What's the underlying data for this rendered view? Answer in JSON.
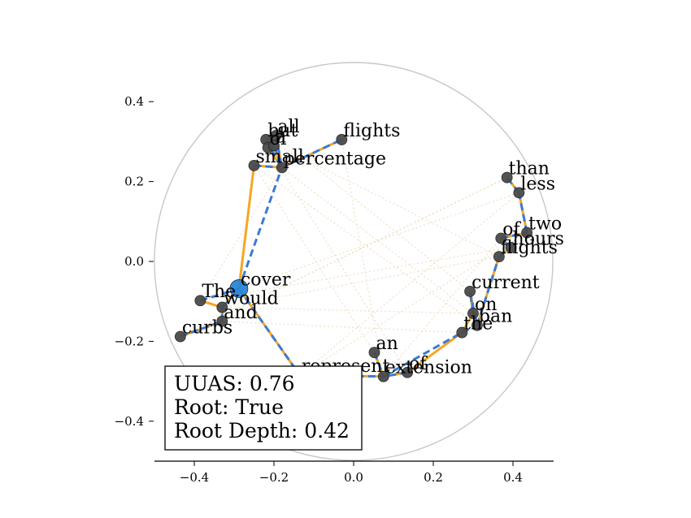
{
  "chart_data": {
    "type": "scatter",
    "title": "",
    "xlabel": "",
    "ylabel": "",
    "xlim": [
      -0.5,
      0.5
    ],
    "ylim": [
      -0.5,
      0.5
    ],
    "xticks": [
      -0.4,
      -0.2,
      0.0,
      0.2,
      0.4
    ],
    "yticks": [
      0.4,
      0.2,
      0.0,
      -0.2,
      -0.4
    ],
    "xtick_labels": [
      "−0.4",
      "−0.2",
      "0.0",
      "0.2",
      "0.4"
    ],
    "ytick_labels": [
      "0.4",
      "0.2",
      "0.0",
      "−0.2",
      "−0.4"
    ],
    "circle_radius": 0.5,
    "root": "cover",
    "points": [
      {
        "word": "The",
        "x": -0.385,
        "y": -0.098
      },
      {
        "word": "curbs",
        "x": -0.435,
        "y": -0.188
      },
      {
        "word": "would",
        "x": -0.33,
        "y": -0.115
      },
      {
        "word": "and",
        "x": -0.33,
        "y": -0.15
      },
      {
        "word": "cover",
        "x": -0.288,
        "y": -0.068
      },
      {
        "word": "but",
        "x": -0.22,
        "y": 0.305
      },
      {
        "word": "all",
        "x": -0.195,
        "y": 0.315
      },
      {
        "word": "of",
        "x": -0.215,
        "y": 0.285
      },
      {
        "word": "a",
        "x": -0.2,
        "y": 0.29
      },
      {
        "word": "small",
        "x": -0.25,
        "y": 0.24
      },
      {
        "word": "percentage",
        "x": -0.18,
        "y": 0.235
      },
      {
        "word": "flights",
        "x": -0.03,
        "y": 0.305
      },
      {
        "word": "than",
        "x": 0.385,
        "y": 0.21
      },
      {
        "word": "less",
        "x": 0.415,
        "y": 0.172
      },
      {
        "word": "two",
        "x": 0.435,
        "y": 0.072
      },
      {
        "word": "of",
        "x": 0.37,
        "y": 0.058
      },
      {
        "word": "hours",
        "x": 0.395,
        "y": 0.035
      },
      {
        "word": "flights",
        "x": 0.365,
        "y": 0.012
      },
      {
        "word": "current",
        "x": 0.292,
        "y": -0.075
      },
      {
        "word": "on",
        "x": 0.3,
        "y": -0.13
      },
      {
        "word": "ban",
        "x": 0.31,
        "y": -0.16
      },
      {
        "word": "the",
        "x": 0.272,
        "y": -0.178
      },
      {
        "word": "an",
        "x": 0.052,
        "y": -0.228
      },
      {
        "word": "represent",
        "x": -0.135,
        "y": -0.285
      },
      {
        "word": "extension",
        "x": 0.075,
        "y": -0.288
      },
      {
        "word": "of",
        "x": 0.135,
        "y": -0.278
      }
    ],
    "series": [
      {
        "name": "",
        "style": "solid",
        "color": "#f5a623",
        "edges": [
          [
            0,
            2
          ],
          [
            1,
            3
          ],
          [
            3,
            2
          ],
          [
            2,
            4
          ],
          [
            4,
            9
          ],
          [
            9,
            10
          ],
          [
            5,
            6
          ],
          [
            6,
            10
          ],
          [
            7,
            10
          ],
          [
            8,
            10
          ],
          [
            10,
            11
          ],
          [
            4,
            23
          ],
          [
            23,
            24
          ],
          [
            22,
            24
          ],
          [
            24,
            25
          ],
          [
            25,
            21
          ],
          [
            21,
            19
          ],
          [
            19,
            18
          ],
          [
            18,
            20
          ],
          [
            20,
            17
          ],
          [
            17,
            16
          ],
          [
            16,
            15
          ],
          [
            15,
            14
          ],
          [
            14,
            13
          ],
          [
            13,
            12
          ]
        ]
      },
      {
        "name": "",
        "style": "dashed",
        "color": "#3a7bd5",
        "edges": [
          [
            0,
            4
          ],
          [
            1,
            3
          ],
          [
            3,
            2
          ],
          [
            2,
            4
          ],
          [
            4,
            10
          ],
          [
            9,
            10
          ],
          [
            5,
            10
          ],
          [
            6,
            10
          ],
          [
            7,
            8
          ],
          [
            8,
            10
          ],
          [
            10,
            11
          ],
          [
            4,
            23
          ],
          [
            23,
            24
          ],
          [
            22,
            24
          ],
          [
            24,
            21
          ],
          [
            25,
            24
          ],
          [
            21,
            20
          ],
          [
            19,
            18
          ],
          [
            18,
            20
          ],
          [
            20,
            17
          ],
          [
            17,
            16
          ],
          [
            16,
            15
          ],
          [
            15,
            14
          ],
          [
            14,
            13
          ],
          [
            13,
            12
          ]
        ]
      }
    ],
    "stats": {
      "uuas_label": "UUAS: 0.76",
      "root_label": "Root: True",
      "root_depth_label": "Root Depth: 0.42"
    }
  },
  "colors": {
    "gold_edge": "#f5a623",
    "blue_edge": "#3a7bd5",
    "node_fill": "#4a4a4a",
    "root_fill": "#2a86d8",
    "circle": "#c8c8c8",
    "background_lines": "#e9d9b8"
  }
}
